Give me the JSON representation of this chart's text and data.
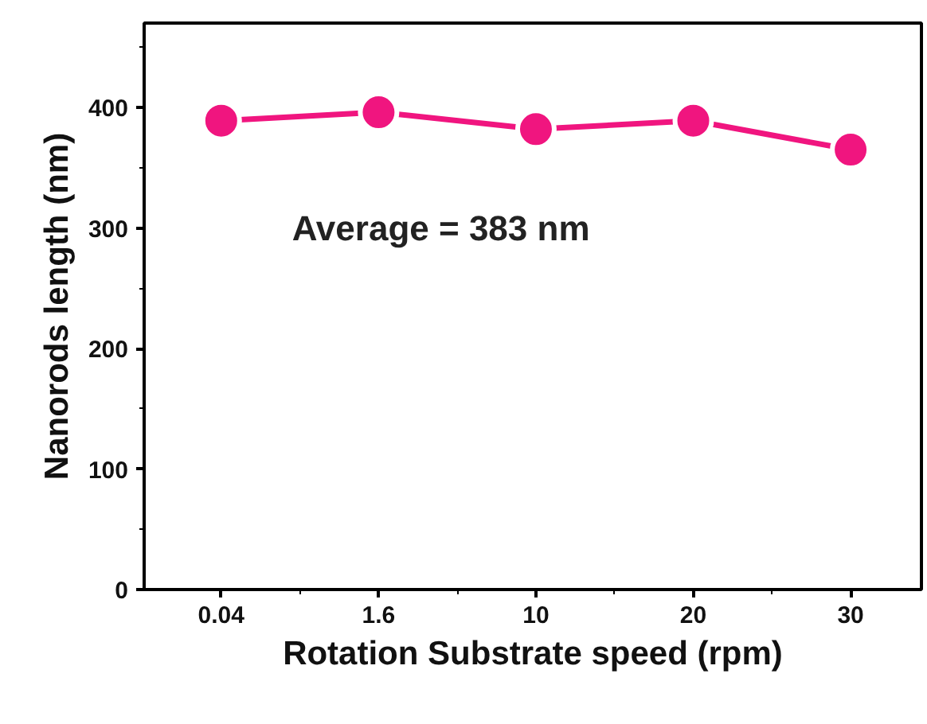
{
  "chart_data": {
    "type": "line",
    "xlabel": "Rotation Substrate speed (rpm)",
    "ylabel": "Nanorods length (nm)",
    "categories": [
      "0.04",
      "1.6",
      "10",
      "20",
      "30"
    ],
    "series": [
      {
        "color": "#f0157f",
        "values": [
          389,
          396,
          382,
          389,
          365
        ]
      }
    ],
    "ylim": [
      0,
      470
    ],
    "yticks": [
      0,
      100,
      200,
      300,
      400
    ],
    "marker": "circle",
    "line_style": "solid",
    "grid": false,
    "annotations": [
      "Average = 383 nm"
    ]
  }
}
